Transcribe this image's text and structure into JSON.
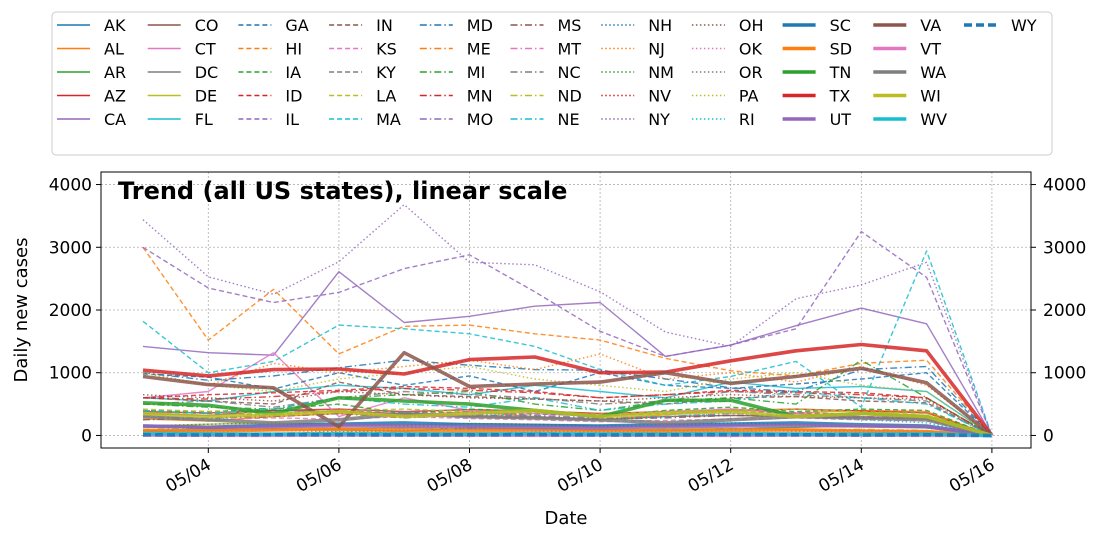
{
  "chart_data": {
    "type": "line",
    "title": "Trend (all US states), linear scale",
    "xlabel": "Date",
    "ylabel": "Daily new cases",
    "x": [
      "05/03",
      "05/04",
      "05/05",
      "05/06",
      "05/07",
      "05/08",
      "05/09",
      "05/10",
      "05/11",
      "05/12",
      "05/13",
      "05/14",
      "05/15",
      "05/16"
    ],
    "x_ticks": [
      "05/04",
      "05/06",
      "05/08",
      "05/10",
      "05/12",
      "05/14",
      "05/16"
    ],
    "y_ticks": [
      0,
      1000,
      2000,
      3000,
      4000
    ],
    "y_ticks_right": [
      0,
      1000,
      2000,
      3000,
      4000
    ],
    "ylim": [
      -200,
      4200
    ],
    "grid": true,
    "legend_placement": "top (above plot, 11 columns)",
    "series": [
      {
        "name": "AK",
        "color": "#1f77b4",
        "style": "solid",
        "width": 1.4,
        "values": [
          5,
          3,
          4,
          6,
          2,
          5,
          4,
          3,
          5,
          6,
          4,
          3,
          5,
          0
        ]
      },
      {
        "name": "AL",
        "color": "#ff7f0e",
        "style": "solid",
        "width": 1.4,
        "values": [
          260,
          230,
          300,
          350,
          320,
          380,
          300,
          250,
          330,
          420,
          360,
          400,
          380,
          0
        ]
      },
      {
        "name": "AR",
        "color": "#2ca02c",
        "style": "solid",
        "width": 1.4,
        "values": [
          60,
          80,
          100,
          90,
          70,
          120,
          110,
          90,
          80,
          100,
          130,
          150,
          120,
          0
        ]
      },
      {
        "name": "AZ",
        "color": "#d62728",
        "style": "solid",
        "width": 1.4,
        "values": [
          380,
          360,
          400,
          420,
          380,
          410,
          390,
          350,
          380,
          400,
          420,
          390,
          360,
          0
        ]
      },
      {
        "name": "CA",
        "color": "#9467bd",
        "style": "solid",
        "width": 1.4,
        "values": [
          1420,
          1320,
          1280,
          2610,
          1800,
          1900,
          2060,
          2120,
          1260,
          1440,
          1750,
          2030,
          1780,
          0
        ]
      },
      {
        "name": "CO",
        "color": "#8c564b",
        "style": "solid",
        "width": 1.4,
        "values": [
          350,
          320,
          400,
          380,
          350,
          300,
          280,
          250,
          300,
          320,
          300,
          280,
          260,
          0
        ]
      },
      {
        "name": "CT",
        "color": "#e377c2",
        "style": "solid",
        "width": 1.4,
        "values": [
          600,
          700,
          1320,
          300,
          600,
          400,
          350,
          300,
          380,
          420,
          350,
          300,
          280,
          0
        ]
      },
      {
        "name": "DC",
        "color": "#7f7f7f",
        "style": "solid",
        "width": 1.4,
        "values": [
          80,
          100,
          90,
          110,
          120,
          100,
          90,
          80,
          100,
          110,
          90,
          80,
          70,
          0
        ]
      },
      {
        "name": "DE",
        "color": "#bcbd22",
        "style": "solid",
        "width": 1.4,
        "values": [
          150,
          180,
          200,
          170,
          160,
          190,
          180,
          150,
          140,
          160,
          170,
          150,
          140,
          0
        ]
      },
      {
        "name": "FL",
        "color": "#17becf",
        "style": "solid",
        "width": 1.4,
        "values": [
          600,
          550,
          700,
          800,
          750,
          650,
          800,
          700,
          600,
          850,
          750,
          780,
          700,
          0
        ]
      },
      {
        "name": "GA",
        "color": "#1f77b4",
        "style": "dashed",
        "width": 1.4,
        "values": [
          980,
          930,
          740,
          1000,
          800,
          950,
          700,
          1000,
          800,
          750,
          820,
          900,
          1000,
          0
        ]
      },
      {
        "name": "HI",
        "color": "#ff7f0e",
        "style": "dashed",
        "width": 1.4,
        "values": [
          3000,
          1520,
          2330,
          1300,
          1740,
          1760,
          1620,
          1520,
          1230,
          1030,
          950,
          1150,
          1200,
          0
        ]
      },
      {
        "name": "IA",
        "color": "#2ca02c",
        "style": "dashed",
        "width": 1.4,
        "values": [
          400,
          380,
          420,
          500,
          350,
          420,
          380,
          300,
          400,
          450,
          380,
          420,
          400,
          0
        ]
      },
      {
        "name": "ID",
        "color": "#d62728",
        "style": "dashed",
        "width": 1.4,
        "values": [
          600,
          650,
          680,
          720,
          780,
          750,
          700,
          600,
          650,
          720,
          700,
          680,
          600,
          0
        ]
      },
      {
        "name": "IL",
        "color": "#9467bd",
        "style": "dashed",
        "width": 1.4,
        "values": [
          3000,
          2350,
          2120,
          2280,
          2660,
          2880,
          2290,
          1660,
          1260,
          1440,
          1700,
          3250,
          2520,
          0
        ]
      },
      {
        "name": "IN",
        "color": "#8c564b",
        "style": "dashed",
        "width": 1.4,
        "values": [
          600,
          550,
          500,
          850,
          650,
          620,
          580,
          550,
          500,
          600,
          620,
          550,
          520,
          0
        ]
      },
      {
        "name": "KS",
        "color": "#e377c2",
        "style": "dashed",
        "width": 1.4,
        "values": [
          300,
          250,
          280,
          260,
          300,
          270,
          250,
          220,
          240,
          260,
          280,
          250,
          230,
          0
        ]
      },
      {
        "name": "KY",
        "color": "#7f7f7f",
        "style": "dashed",
        "width": 1.4,
        "values": [
          380,
          350,
          330,
          400,
          380,
          360,
          340,
          320,
          350,
          380,
          360,
          340,
          320,
          0
        ]
      },
      {
        "name": "LA",
        "color": "#bcbd22",
        "style": "dashed",
        "width": 1.4,
        "values": [
          420,
          380,
          350,
          400,
          420,
          380,
          360,
          340,
          380,
          400,
          420,
          380,
          350,
          0
        ]
      },
      {
        "name": "MA",
        "color": "#17becf",
        "style": "dashed",
        "width": 1.4,
        "values": [
          1820,
          1000,
          1180,
          1760,
          1700,
          1620,
          1420,
          1050,
          800,
          940,
          1180,
          450,
          2940,
          0
        ]
      },
      {
        "name": "MD",
        "color": "#1f77b4",
        "style": "dashdot",
        "width": 1.4,
        "values": [
          1000,
          880,
          950,
          1080,
          1200,
          1120,
          1050,
          1040,
          900,
          760,
          700,
          1050,
          1100,
          0
        ]
      },
      {
        "name": "ME",
        "color": "#ff7f0e",
        "style": "dashdot",
        "width": 1.4,
        "values": [
          40,
          30,
          35,
          50,
          40,
          30,
          45,
          35,
          40,
          30,
          35,
          40,
          30,
          0
        ]
      },
      {
        "name": "MI",
        "color": "#2ca02c",
        "style": "dashdot",
        "width": 1.4,
        "values": [
          500,
          450,
          420,
          600,
          650,
          700,
          500,
          400,
          550,
          600,
          500,
          1200,
          600,
          0
        ]
      },
      {
        "name": "MN",
        "color": "#d62728",
        "style": "dashdot",
        "width": 1.4,
        "values": [
          600,
          580,
          620,
          700,
          750,
          720,
          680,
          600,
          650,
          700,
          680,
          650,
          600,
          0
        ]
      },
      {
        "name": "MO",
        "color": "#9467bd",
        "style": "dashdot",
        "width": 1.4,
        "values": [
          300,
          280,
          320,
          350,
          300,
          380,
          320,
          280,
          300,
          350,
          320,
          300,
          280,
          0
        ]
      },
      {
        "name": "MS",
        "color": "#8c564b",
        "style": "dashdot",
        "width": 1.4,
        "values": [
          250,
          280,
          300,
          350,
          280,
          330,
          300,
          260,
          280,
          320,
          300,
          280,
          260,
          0
        ]
      },
      {
        "name": "MT",
        "color": "#e377c2",
        "style": "dashdot",
        "width": 1.4,
        "values": [
          5,
          3,
          8,
          4,
          6,
          3,
          5,
          4,
          3,
          6,
          4,
          5,
          3,
          0
        ]
      },
      {
        "name": "NC",
        "color": "#7f7f7f",
        "style": "dashdot",
        "width": 1.4,
        "values": [
          500,
          550,
          450,
          600,
          700,
          650,
          600,
          500,
          550,
          700,
          650,
          600,
          550,
          0
        ]
      },
      {
        "name": "ND",
        "color": "#bcbd22",
        "style": "dashdot",
        "width": 1.4,
        "values": [
          100,
          120,
          90,
          110,
          130,
          100,
          120,
          90,
          100,
          110,
          90,
          100,
          80,
          0
        ]
      },
      {
        "name": "NE",
        "color": "#17becf",
        "style": "dashdot",
        "width": 1.4,
        "values": [
          400,
          350,
          420,
          600,
          500,
          450,
          600,
          400,
          500,
          550,
          700,
          600,
          500,
          0
        ]
      },
      {
        "name": "NH",
        "color": "#1f77b4",
        "style": "dotted",
        "width": 1.4,
        "values": [
          80,
          70,
          90,
          100,
          80,
          90,
          70,
          60,
          80,
          90,
          70,
          80,
          60,
          0
        ]
      },
      {
        "name": "NJ",
        "color": "#ff7f0e",
        "style": "dotted",
        "width": 1.4,
        "values": [
          1000,
          800,
          1150,
          1000,
          1100,
          1200,
          1050,
          1300,
          900,
          1000,
          850,
          1100,
          800,
          0
        ]
      },
      {
        "name": "NM",
        "color": "#2ca02c",
        "style": "dotted",
        "width": 1.4,
        "values": [
          150,
          180,
          200,
          160,
          170,
          190,
          180,
          150,
          170,
          200,
          180,
          160,
          150,
          0
        ]
      },
      {
        "name": "NV",
        "color": "#d62728",
        "style": "dotted",
        "width": 1.4,
        "values": [
          150,
          130,
          160,
          180,
          150,
          140,
          160,
          130,
          150,
          170,
          160,
          140,
          130,
          0
        ]
      },
      {
        "name": "NY",
        "color": "#9467bd",
        "style": "dotted",
        "width": 1.4,
        "values": [
          3440,
          2530,
          2250,
          2770,
          3680,
          2760,
          2720,
          2290,
          1650,
          1420,
          2180,
          2400,
          2760,
          0
        ]
      },
      {
        "name": "OH",
        "color": "#8c564b",
        "style": "dotted",
        "width": 1.4,
        "values": [
          650,
          600,
          550,
          700,
          650,
          600,
          580,
          550,
          600,
          650,
          620,
          600,
          580,
          0
        ]
      },
      {
        "name": "OK",
        "color": "#e377c2",
        "style": "dotted",
        "width": 1.4,
        "values": [
          100,
          80,
          90,
          110,
          100,
          90,
          80,
          70,
          90,
          100,
          90,
          80,
          70,
          0
        ]
      },
      {
        "name": "OR",
        "color": "#7f7f7f",
        "style": "dotted",
        "width": 1.4,
        "values": [
          60,
          70,
          80,
          60,
          70,
          100,
          90,
          70,
          60,
          80,
          70,
          60,
          50,
          0
        ]
      },
      {
        "name": "PA",
        "color": "#bcbd22",
        "style": "dotted",
        "width": 1.4,
        "values": [
          1000,
          800,
          700,
          900,
          1000,
          1100,
          900,
          800,
          700,
          900,
          1000,
          800,
          700,
          0
        ]
      },
      {
        "name": "RI",
        "color": "#17becf",
        "style": "dotted",
        "width": 1.4,
        "values": [
          300,
          250,
          350,
          400,
          300,
          350,
          300,
          250,
          300,
          350,
          300,
          250,
          200,
          0
        ]
      },
      {
        "name": "SC",
        "color": "#1f77b4",
        "style": "solid",
        "width": 3.6,
        "values": [
          150,
          130,
          160,
          180,
          200,
          170,
          160,
          150,
          170,
          180,
          200,
          170,
          150,
          0
        ]
      },
      {
        "name": "SD",
        "color": "#ff7f0e",
        "style": "solid",
        "width": 3.6,
        "values": [
          80,
          70,
          90,
          100,
          80,
          70,
          90,
          80,
          70,
          80,
          90,
          70,
          60,
          0
        ]
      },
      {
        "name": "TN",
        "color": "#2ca02c",
        "style": "solid",
        "width": 3.6,
        "values": [
          520,
          480,
          350,
          600,
          550,
          500,
          400,
          300,
          560,
          560,
          300,
          350,
          300,
          0
        ]
      },
      {
        "name": "TX",
        "color": "#d62728",
        "style": "solid",
        "width": 3.6,
        "values": [
          1040,
          950,
          1050,
          1060,
          980,
          1210,
          1250,
          1000,
          1010,
          1190,
          1350,
          1450,
          1350,
          0
        ]
      },
      {
        "name": "UT",
        "color": "#9467bd",
        "style": "solid",
        "width": 3.6,
        "values": [
          150,
          130,
          140,
          160,
          150,
          140,
          130,
          120,
          140,
          150,
          160,
          150,
          140,
          0
        ]
      },
      {
        "name": "VA",
        "color": "#8c564b",
        "style": "solid",
        "width": 3.6,
        "values": [
          940,
          810,
          760,
          140,
          1320,
          780,
          820,
          850,
          1000,
          830,
          940,
          1070,
          840,
          0
        ]
      },
      {
        "name": "VT",
        "color": "#e377c2",
        "style": "solid",
        "width": 3.6,
        "values": [
          5,
          4,
          3,
          6,
          5,
          4,
          3,
          5,
          4,
          3,
          5,
          4,
          3,
          0
        ]
      },
      {
        "name": "WA",
        "color": "#7f7f7f",
        "style": "solid",
        "width": 3.6,
        "values": [
          300,
          250,
          200,
          250,
          350,
          300,
          280,
          250,
          200,
          250,
          300,
          280,
          250,
          0
        ]
      },
      {
        "name": "WI",
        "color": "#bcbd22",
        "style": "solid",
        "width": 3.6,
        "values": [
          350,
          300,
          330,
          380,
          300,
          350,
          400,
          300,
          350,
          380,
          300,
          350,
          300,
          0
        ]
      },
      {
        "name": "WV",
        "color": "#17becf",
        "style": "solid",
        "width": 3.6,
        "values": [
          30,
          25,
          20,
          30,
          25,
          20,
          30,
          25,
          20,
          30,
          25,
          20,
          25,
          0
        ]
      },
      {
        "name": "WY",
        "color": "#1f77b4",
        "style": "dashed",
        "width": 3.6,
        "values": [
          10,
          8,
          12,
          10,
          8,
          10,
          12,
          8,
          10,
          12,
          10,
          8,
          10,
          0
        ]
      }
    ]
  }
}
